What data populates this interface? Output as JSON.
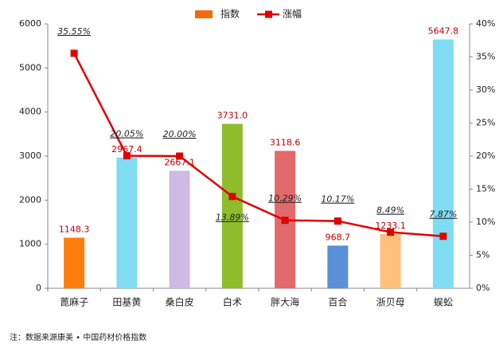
{
  "chart_data": {
    "type": "bar-line",
    "categories": [
      "蓖麻子",
      "田基黄",
      "桑白皮",
      "白术",
      "胖大海",
      "百合",
      "浙贝母",
      "蜈蚣"
    ],
    "series": [
      {
        "name": "指数",
        "color": "#f26c0b",
        "colors": [
          "#ff7f0e",
          "#80dcf2",
          "#cdbbe6",
          "#8fbc2b",
          "#e26a6a",
          "#5b8fd8",
          "#ffc07a",
          "#80dcf2"
        ],
        "values": [
          1148.3,
          2967.4,
          2667.1,
          3731.0,
          3118.6,
          968.7,
          1233.1,
          5647.8
        ],
        "value_labels": [
          "1148.3",
          "2967.4",
          "2667.1",
          "3731.0",
          "3118.6",
          "968.7",
          "1233.1",
          "5647.8"
        ]
      },
      {
        "name": "涨幅",
        "color": "#e00000",
        "axis": "y2",
        "values": [
          35.55,
          20.05,
          20.0,
          13.89,
          10.29,
          10.17,
          8.49,
          7.87
        ],
        "value_labels": [
          "35.55%",
          "20.05%",
          "20.00%",
          "13.89%",
          "10.29%",
          "10.17%",
          "8.49%",
          "7.87%"
        ]
      }
    ],
    "ylim": [
      0,
      6000
    ],
    "yticks": [
      0,
      1000,
      2000,
      3000,
      4000,
      5000,
      6000
    ],
    "y2lim": [
      0,
      40
    ],
    "y2ticks": [
      {
        "value": 0,
        "label": "0%"
      },
      {
        "value": 5,
        "label": "5%"
      },
      {
        "value": 10,
        "label": "10%"
      },
      {
        "value": 15,
        "label": "15%"
      },
      {
        "value": 20,
        "label": "20%"
      },
      {
        "value": 25,
        "label": "25%"
      },
      {
        "value": 30,
        "label": "30%"
      },
      {
        "value": 35,
        "label": "35%"
      },
      {
        "value": 40,
        "label": "40%"
      }
    ],
    "grid": false,
    "legend": "top",
    "note": "注：数据来源康美 • 中国药材价格指数"
  }
}
